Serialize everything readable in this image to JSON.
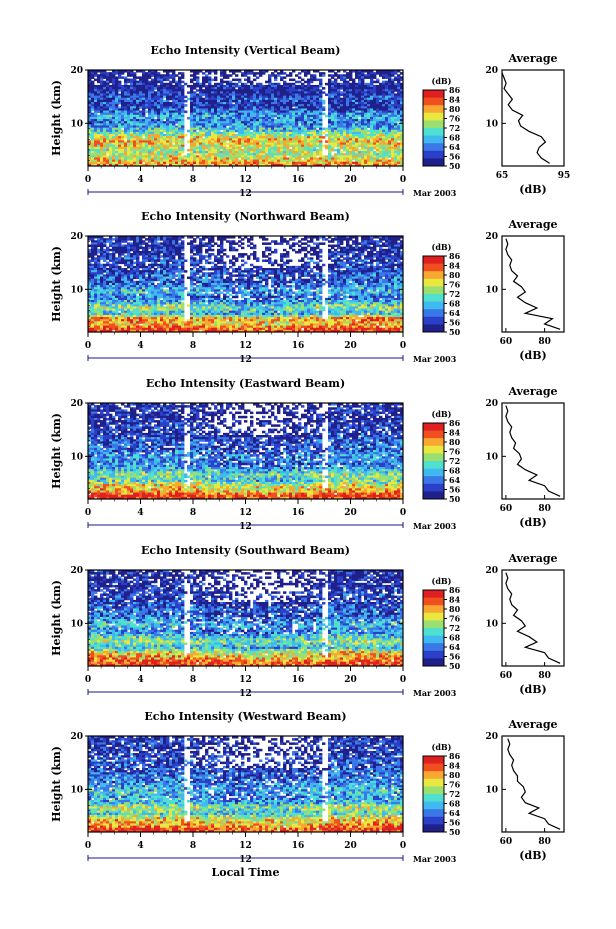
{
  "figure": {
    "xlabel": "Local Time",
    "date_label": "Mar 2003",
    "colorbar_unit": "(dB)",
    "colorbar_ticks": [
      "50",
      "56",
      "64",
      "68",
      "72",
      "76",
      "80",
      "84",
      "86"
    ],
    "colormap": [
      "#20208a",
      "#2a40c8",
      "#3a78e8",
      "#40b8f0",
      "#50e0d0",
      "#9ae070",
      "#e8e840",
      "#f8a830",
      "#f05020",
      "#e02020"
    ],
    "average_title": "Average",
    "average_xlabel": "(dB)",
    "noon_marker": "12"
  },
  "chart_data": [
    {
      "type": "heatmap",
      "title": "Echo Intensity (Vertical Beam)",
      "xlabel": "",
      "ylabel": "Height (km)",
      "x_ticks": [
        "0",
        "4",
        "8",
        "12",
        "16",
        "20",
        "0"
      ],
      "xlim": [
        0,
        24
      ],
      "y_ticks": [
        "20",
        "10"
      ],
      "ylim": [
        2,
        20
      ],
      "value_range": [
        50,
        86
      ],
      "profile_heights_km": [
        2.5,
        3.5,
        4.5,
        5.5,
        6.5,
        7.5,
        8.5,
        9.5,
        10.5,
        11.5,
        12.5,
        13.5,
        14.5,
        15.5,
        16.5,
        17.5,
        18.5,
        19.5
      ],
      "profile_db": [
        88,
        84,
        82,
        83,
        86,
        84,
        78,
        74,
        73,
        75,
        70,
        68,
        70,
        68,
        66,
        67,
        66,
        65
      ],
      "average": {
        "title": "Average",
        "xlabel": "(dB)",
        "x_ticks": [
          "65",
          "95"
        ],
        "xlim": [
          65,
          95
        ],
        "y_ticks": [
          "20",
          "10"
        ]
      }
    },
    {
      "type": "heatmap",
      "title": "Echo Intensity (Northward Beam)",
      "xlabel": "",
      "ylabel": "Height (km)",
      "x_ticks": [
        "0",
        "4",
        "8",
        "12",
        "16",
        "20",
        "0"
      ],
      "xlim": [
        0,
        24
      ],
      "y_ticks": [
        "20",
        "10"
      ],
      "ylim": [
        2,
        20
      ],
      "value_range": [
        50,
        86
      ],
      "profile_heights_km": [
        2.5,
        3.5,
        4.5,
        5.5,
        6.5,
        7.5,
        8.5,
        9.5,
        10.5,
        11.5,
        12.5,
        13.5,
        14.5,
        15.5,
        16.5,
        17.5,
        18.5,
        19.5
      ],
      "profile_db": [
        88,
        80,
        84,
        70,
        76,
        70,
        66,
        70,
        68,
        64,
        66,
        63,
        62,
        63,
        61,
        60,
        61,
        60
      ],
      "average": {
        "title": "Average",
        "xlabel": "(dB)",
        "x_ticks": [
          "60",
          "80"
        ],
        "xlim": [
          58,
          90
        ],
        "y_ticks": [
          "20",
          "10"
        ]
      }
    },
    {
      "type": "heatmap",
      "title": "Echo Intensity (Eastward Beam)",
      "xlabel": "",
      "ylabel": "Height (km)",
      "x_ticks": [
        "0",
        "4",
        "8",
        "12",
        "16",
        "20",
        "0"
      ],
      "xlim": [
        0,
        24
      ],
      "y_ticks": [
        "20",
        "10"
      ],
      "ylim": [
        2,
        20
      ],
      "value_range": [
        50,
        86
      ],
      "profile_heights_km": [
        2.5,
        3.5,
        4.5,
        5.5,
        6.5,
        7.5,
        8.5,
        9.5,
        10.5,
        11.5,
        12.5,
        13.5,
        14.5,
        15.5,
        16.5,
        17.5,
        18.5,
        19.5
      ],
      "profile_db": [
        88,
        82,
        80,
        72,
        76,
        70,
        66,
        68,
        67,
        64,
        65,
        63,
        62,
        63,
        61,
        60,
        61,
        60
      ],
      "average": {
        "title": "Average",
        "xlabel": "(dB)",
        "x_ticks": [
          "60",
          "80"
        ],
        "xlim": [
          58,
          90
        ],
        "y_ticks": [
          "20",
          "10"
        ]
      }
    },
    {
      "type": "heatmap",
      "title": "Echo Intensity (Southward Beam)",
      "xlabel": "",
      "ylabel": "Height (km)",
      "x_ticks": [
        "0",
        "4",
        "8",
        "12",
        "16",
        "20",
        "0"
      ],
      "xlim": [
        0,
        24
      ],
      "y_ticks": [
        "20",
        "10"
      ],
      "ylim": [
        2,
        20
      ],
      "value_range": [
        50,
        86
      ],
      "profile_heights_km": [
        2.5,
        3.5,
        4.5,
        5.5,
        6.5,
        7.5,
        8.5,
        9.5,
        10.5,
        11.5,
        12.5,
        13.5,
        14.5,
        15.5,
        16.5,
        17.5,
        18.5,
        19.5
      ],
      "profile_db": [
        88,
        82,
        80,
        70,
        76,
        72,
        66,
        70,
        68,
        64,
        66,
        63,
        62,
        63,
        61,
        60,
        61,
        60
      ],
      "average": {
        "title": "Average",
        "xlabel": "(dB)",
        "x_ticks": [
          "60",
          "80"
        ],
        "xlim": [
          58,
          90
        ],
        "y_ticks": [
          "20",
          "10"
        ]
      }
    },
    {
      "type": "heatmap",
      "title": "Echo Intensity (Westward Beam)",
      "xlabel": "Local Time",
      "ylabel": "Height (km)",
      "x_ticks": [
        "0",
        "4",
        "8",
        "12",
        "16",
        "20",
        "0"
      ],
      "xlim": [
        0,
        24
      ],
      "y_ticks": [
        "20",
        "10"
      ],
      "ylim": [
        2,
        20
      ],
      "value_range": [
        50,
        86
      ],
      "profile_heights_km": [
        2.5,
        3.5,
        4.5,
        5.5,
        6.5,
        7.5,
        8.5,
        9.5,
        10.5,
        11.5,
        12.5,
        13.5,
        14.5,
        15.5,
        16.5,
        17.5,
        18.5,
        19.5
      ],
      "profile_db": [
        88,
        82,
        80,
        72,
        77,
        70,
        68,
        70,
        69,
        66,
        66,
        64,
        63,
        64,
        62,
        61,
        62,
        61
      ],
      "average": {
        "title": "Average",
        "xlabel": "(dB)",
        "x_ticks": [
          "60",
          "80"
        ],
        "xlim": [
          58,
          90
        ],
        "y_ticks": [
          "20",
          "10"
        ]
      }
    }
  ]
}
